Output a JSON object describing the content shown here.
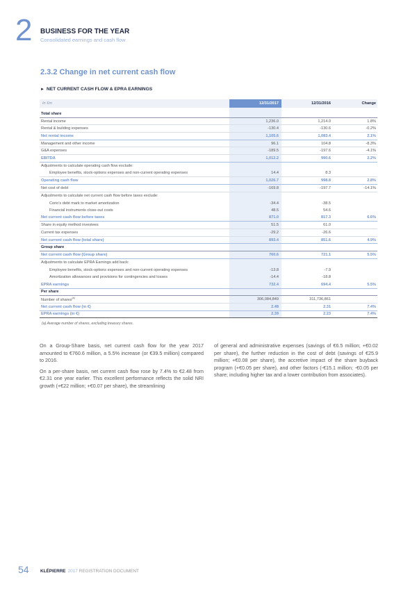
{
  "header": {
    "chapter_number": "2",
    "chapter_title": "BUSINESS FOR THE YEAR",
    "chapter_subtitle": "Consolidated earnings and cash flow"
  },
  "section_title": "2.3.2 Change in net current cash flow",
  "table_title": "NET CURRENT CASH FLOW & EPRA EARNINGS",
  "table": {
    "columns": [
      "In €m",
      "12/31/2017",
      "12/31/2016",
      "Change"
    ],
    "rows": [
      {
        "type": "section",
        "label": "Total share",
        "v2017": "",
        "v2016": "",
        "change": ""
      },
      {
        "type": "normal",
        "label": "Rental income",
        "v2017": "1,236.0",
        "v2016": "1,214.0",
        "change": "1.8%"
      },
      {
        "type": "normal",
        "label": "Rental & building expenses",
        "v2017": "-130.4",
        "v2016": "-130.6",
        "change": "-0.2%"
      },
      {
        "type": "total",
        "label": "Net rental income",
        "v2017": "1,105.6",
        "v2016": "1,083.4",
        "change": "2.1%"
      },
      {
        "type": "normal",
        "label": "Management and other income",
        "v2017": "96.1",
        "v2016": "104.8",
        "change": "-8.3%"
      },
      {
        "type": "normal",
        "label": "G&A expenses",
        "v2017": "-189.5",
        "v2016": "-197.6",
        "change": "-4.1%"
      },
      {
        "type": "total",
        "label": "EBITDA",
        "v2017": "1,012.2",
        "v2016": "990.6",
        "change": "2.2%"
      },
      {
        "type": "plain",
        "label": "Adjustments to calculate operating cash flow exclude:",
        "v2017": "",
        "v2016": "",
        "change": ""
      },
      {
        "type": "sub",
        "label": "Employee benefits, stock-options expenses and non-current operating expenses",
        "v2017": "14.4",
        "v2016": "8.3",
        "change": ""
      },
      {
        "type": "total",
        "label": "Operating cash flow",
        "v2017": "1,026.7",
        "v2016": "998.8",
        "change": "2.8%"
      },
      {
        "type": "normal",
        "label": "Net cost of debt",
        "v2017": "-169.8",
        "v2016": "-197.7",
        "change": "-14.1%"
      },
      {
        "type": "plain",
        "label": "Adjustments to calculate net current cash flow before taxes exclude:",
        "v2017": "",
        "v2016": "",
        "change": ""
      },
      {
        "type": "sub plain",
        "label": "Corio's debt mark to market amortization",
        "v2017": "-34.4",
        "v2016": "-38.5",
        "change": ""
      },
      {
        "type": "sub plain",
        "label": "Financial instruments close-out costs",
        "v2017": "48.5",
        "v2016": "54.6",
        "change": ""
      },
      {
        "type": "total",
        "label": "Net current cash flow before taxes",
        "v2017": "871.0",
        "v2016": "817.3",
        "change": "6.6%"
      },
      {
        "type": "normal",
        "label": "Share in equity method investees",
        "v2017": "51.5",
        "v2016": "61.0",
        "change": ""
      },
      {
        "type": "normal",
        "label": "Current tax expenses",
        "v2017": "-29.2",
        "v2016": "-26.6",
        "change": ""
      },
      {
        "type": "total",
        "label": "Net current cash flow (total share)",
        "v2017": "893.4",
        "v2016": "851.6",
        "change": "4.9%"
      },
      {
        "type": "section",
        "label": "Group share",
        "v2017": "",
        "v2016": "",
        "change": ""
      },
      {
        "type": "total",
        "label": "Net current cash flow (Group share)",
        "v2017": "760.6",
        "v2016": "721.1",
        "change": "5.5%"
      },
      {
        "type": "plain",
        "label": "Adjustments to calculate EPRA Earnings add back:",
        "v2017": "",
        "v2016": "",
        "change": ""
      },
      {
        "type": "sub plain",
        "label": "Employee benefits, stock-options expenses and non-current operating expenses",
        "v2017": "-13.8",
        "v2016": "-7.9",
        "change": ""
      },
      {
        "type": "sub plain",
        "label": "Amortization allowances and provisions for contingencies and losses",
        "v2017": "-14.4",
        "v2016": "-18.8",
        "change": ""
      },
      {
        "type": "total",
        "label": "EPRA earnings",
        "v2017": "732.4",
        "v2016": "694.4",
        "change": "5.5%"
      },
      {
        "type": "section",
        "label": "Per share",
        "v2017": "",
        "v2016": "",
        "change": ""
      },
      {
        "type": "normal",
        "label": "Number of shares",
        "sup": "(a)",
        "v2017": "306,084,849",
        "v2016": "311,736,861",
        "change": ""
      },
      {
        "type": "total",
        "label": "Net current cash flow (in €)",
        "v2017": "2.48",
        "v2016": "2.31",
        "change": "7.4%"
      },
      {
        "type": "total last",
        "label": "EPRA earnings (in €)",
        "v2017": "2.39",
        "v2016": "2.23",
        "change": "7.4%"
      }
    ]
  },
  "footnote": "(a) Average number of shares, excluding treasury shares.",
  "body": [
    "On a Group-Share basis, net current cash flow for the year 2017 amounted to €760.6 million, a 5.5% increase (or €39.5 million) compared to 2016.",
    "On a per-share basis, net current cash flow rose by 7.4% to €2.48 from €2.31 one year earlier. This excellent performance reflects the solid NRI growth (+€22 million; +€0.07 per share), the streamlining",
    "of general and administrative expenses (savings of €6.5 million; +€0.02 per share), the further reduction in the cost of debt (savings of €25.9 million; +€0.08 per share), the accretive impact of the share buyback program (+€0.05 per share), and other factors (-€15.1 million; -€0.05 per share; including higher tax and a lower contribution from associates)."
  ],
  "footer": {
    "page_number": "54",
    "brand": "KLÉPIERRE",
    "year": "2017",
    "doc": "REGISTRATION DOCUMENT"
  }
}
